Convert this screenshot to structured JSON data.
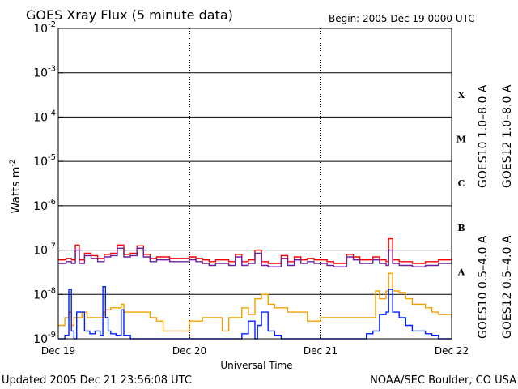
{
  "chart_data": {
    "type": "line",
    "title": "GOES Xray Flux (5 minute data)",
    "begin_label": "Begin:  2005 Dec 19 0000 UTC",
    "ylabel": "Watts m",
    "ylabel_sup": "-2",
    "xlabel": "Universal Time",
    "yscale": "log",
    "ylim": [
      1e-09,
      0.01
    ],
    "y_ticks": [
      {
        "base": "10",
        "exp": "-2",
        "value": 0.01
      },
      {
        "base": "10",
        "exp": "-3",
        "value": 0.001
      },
      {
        "base": "10",
        "exp": "-4",
        "value": 0.0001
      },
      {
        "base": "10",
        "exp": "-5",
        "value": 1e-05
      },
      {
        "base": "10",
        "exp": "-6",
        "value": 1e-06
      },
      {
        "base": "10",
        "exp": "-7",
        "value": 1e-07
      },
      {
        "base": "10",
        "exp": "-8",
        "value": 1e-08
      },
      {
        "base": "10",
        "exp": "-9",
        "value": 1e-09
      }
    ],
    "x_range_days": [
      0,
      3
    ],
    "x_ticks": [
      {
        "label": "Dec 19",
        "day": 0
      },
      {
        "label": "Dec 20",
        "day": 1
      },
      {
        "label": "Dec 21",
        "day": 2
      },
      {
        "label": "Dec 22",
        "day": 3
      }
    ],
    "flare_classes": [
      {
        "label": "X",
        "value": 0.00032
      },
      {
        "label": "M",
        "value": 3.2e-05
      },
      {
        "label": "C",
        "value": 3.2e-06
      },
      {
        "label": "B",
        "value": 3.2e-07
      },
      {
        "label": "A",
        "value": 3.2e-08
      }
    ],
    "grid": "horizontal lines at each decade",
    "series": [
      {
        "name": "GOES12 1.0-8.0 A",
        "color": "#ff0000",
        "x": [
          0,
          0.06,
          0.1,
          0.13,
          0.16,
          0.2,
          0.25,
          0.3,
          0.35,
          0.4,
          0.45,
          0.5,
          0.55,
          0.6,
          0.65,
          0.7,
          0.75,
          0.8,
          0.85,
          0.9,
          0.95,
          1.0,
          1.05,
          1.1,
          1.15,
          1.2,
          1.25,
          1.3,
          1.35,
          1.4,
          1.45,
          1.5,
          1.55,
          1.6,
          1.65,
          1.7,
          1.75,
          1.8,
          1.85,
          1.9,
          1.95,
          2.0,
          2.05,
          2.1,
          2.15,
          2.2,
          2.25,
          2.3,
          2.35,
          2.4,
          2.45,
          2.5,
          2.52,
          2.55,
          2.6,
          2.65,
          2.7,
          2.75,
          2.8,
          2.85,
          2.9,
          2.95,
          3.0
        ],
        "y": [
          6e-08,
          6.5e-08,
          6e-08,
          1.3e-07,
          6e-08,
          8.5e-08,
          7.5e-08,
          6.5e-08,
          8e-08,
          8.5e-08,
          1.3e-07,
          8e-08,
          8.5e-08,
          1.25e-07,
          8e-08,
          6.5e-08,
          7e-08,
          7e-08,
          6.5e-08,
          6.5e-08,
          6.5e-08,
          7e-08,
          6.5e-08,
          6e-08,
          5.5e-08,
          6e-08,
          6e-08,
          5.5e-08,
          8e-08,
          5.5e-08,
          6e-08,
          1e-07,
          5.5e-08,
          5e-08,
          5e-08,
          7.5e-08,
          5.5e-08,
          7e-08,
          6e-08,
          6.5e-08,
          6e-08,
          6e-08,
          5.5e-08,
          5e-08,
          5e-08,
          8e-08,
          7e-08,
          6e-08,
          6e-08,
          7e-08,
          6e-08,
          5.5e-08,
          1.8e-07,
          6e-08,
          5.5e-08,
          5.5e-08,
          5e-08,
          5e-08,
          5.5e-08,
          5.5e-08,
          6e-08,
          6e-08,
          6.5e-08
        ]
      },
      {
        "name": "GOES10 1.0-8.0 A",
        "color": "#6a1fa0",
        "x": [
          0,
          0.06,
          0.1,
          0.13,
          0.16,
          0.2,
          0.25,
          0.3,
          0.35,
          0.4,
          0.45,
          0.5,
          0.55,
          0.6,
          0.65,
          0.7,
          0.75,
          0.8,
          0.85,
          0.9,
          0.95,
          1.0,
          1.05,
          1.1,
          1.15,
          1.2,
          1.25,
          1.3,
          1.35,
          1.4,
          1.45,
          1.5,
          1.55,
          1.6,
          1.65,
          1.7,
          1.75,
          1.8,
          1.85,
          1.9,
          1.95,
          2.0,
          2.05,
          2.1,
          2.15,
          2.2,
          2.25,
          2.3,
          2.35,
          2.4,
          2.45,
          2.5,
          2.52,
          2.55,
          2.6,
          2.65,
          2.7,
          2.75,
          2.8,
          2.85,
          2.9,
          2.95,
          3.0
        ],
        "y": [
          5e-08,
          5.5e-08,
          5e-08,
          1e-07,
          5e-08,
          7.5e-08,
          6.5e-08,
          5.5e-08,
          7e-08,
          7.5e-08,
          1.1e-07,
          7e-08,
          7.5e-08,
          1.1e-07,
          7e-08,
          5.5e-08,
          6e-08,
          6e-08,
          5.5e-08,
          5.5e-08,
          5.5e-08,
          6e-08,
          5.5e-08,
          5e-08,
          4.5e-08,
          5e-08,
          5e-08,
          4.5e-08,
          7e-08,
          4.5e-08,
          5e-08,
          8.5e-08,
          4.5e-08,
          4.2e-08,
          4.2e-08,
          6.5e-08,
          4.5e-08,
          6e-08,
          5e-08,
          5.5e-08,
          5e-08,
          5e-08,
          4.5e-08,
          4.2e-08,
          4.2e-08,
          7e-08,
          6e-08,
          5e-08,
          5e-08,
          6e-08,
          5e-08,
          4.5e-08,
          1e-07,
          5e-08,
          4.5e-08,
          4.5e-08,
          4.2e-08,
          4.2e-08,
          4.5e-08,
          4.5e-08,
          5e-08,
          5e-08,
          5.5e-08
        ]
      },
      {
        "name": "GOES10 0.5-4.0 A",
        "color": "#f0a000",
        "x": [
          0,
          0.05,
          0.08,
          0.1,
          0.12,
          0.14,
          0.18,
          0.22,
          0.26,
          0.3,
          0.34,
          0.36,
          0.4,
          0.44,
          0.48,
          0.5,
          0.55,
          0.6,
          0.65,
          0.7,
          0.75,
          0.8,
          0.85,
          0.9,
          0.95,
          1.0,
          1.1,
          1.2,
          1.25,
          1.3,
          1.35,
          1.4,
          1.45,
          1.5,
          1.55,
          1.6,
          1.65,
          1.7,
          1.75,
          1.8,
          1.85,
          1.9,
          1.95,
          2.0,
          2.1,
          2.2,
          2.3,
          2.35,
          2.4,
          2.42,
          2.45,
          2.5,
          2.52,
          2.55,
          2.6,
          2.65,
          2.7,
          2.75,
          2.8,
          2.85,
          2.9,
          3.0
        ],
        "y": [
          2e-09,
          3e-09,
          4e-09,
          2e-09,
          3e-09,
          3e-09,
          4e-09,
          3e-09,
          3e-09,
          3e-09,
          4e-09,
          4.5e-09,
          5e-09,
          5e-09,
          6e-09,
          4e-09,
          4e-09,
          4e-09,
          4e-09,
          3e-09,
          2.5e-09,
          1.5e-09,
          1.5e-09,
          1.5e-09,
          1.5e-09,
          2.5e-09,
          3e-09,
          3e-09,
          1.5e-09,
          3e-09,
          3e-09,
          5e-09,
          3.5e-09,
          8e-09,
          1e-08,
          6e-09,
          5e-09,
          5e-09,
          4e-09,
          4e-09,
          4e-09,
          2.5e-09,
          2.5e-09,
          3e-09,
          3e-09,
          3e-09,
          3e-09,
          3e-09,
          3e-09,
          1.2e-08,
          8e-09,
          1.2e-08,
          3e-08,
          1.2e-08,
          1.1e-08,
          8e-09,
          6e-09,
          6e-09,
          5e-09,
          4e-09,
          3.5e-09,
          3e-09
        ]
      },
      {
        "name": "GOES12 0.5-4.0 A",
        "color": "#0020ff",
        "x": [
          0,
          0.05,
          0.08,
          0.1,
          0.12,
          0.14,
          0.16,
          0.2,
          0.24,
          0.28,
          0.32,
          0.34,
          0.36,
          0.38,
          0.4,
          0.44,
          0.48,
          0.5,
          0.55,
          0.6,
          0.65,
          0.7,
          0.75,
          0.8,
          0.85,
          0.9,
          0.95,
          1.0,
          1.1,
          1.2,
          1.3,
          1.4,
          1.45,
          1.5,
          1.52,
          1.55,
          1.6,
          1.65,
          1.7,
          1.75,
          1.8,
          1.85,
          1.9,
          1.95,
          2.0,
          2.1,
          2.2,
          2.3,
          2.35,
          2.4,
          2.45,
          2.5,
          2.52,
          2.55,
          2.6,
          2.65,
          2.7,
          2.75,
          2.8,
          2.85,
          2.9,
          3.0
        ],
        "y": [
          1e-09,
          1.2e-09,
          1.3e-08,
          1.5e-09,
          1e-09,
          4e-09,
          4e-09,
          1.5e-09,
          1.3e-09,
          1.5e-09,
          1.2e-09,
          1.5e-08,
          3e-09,
          1.5e-09,
          1.3e-09,
          1.2e-09,
          4.5e-09,
          1.2e-09,
          1e-09,
          1e-09,
          1e-09,
          1e-09,
          1e-09,
          1e-09,
          1e-09,
          1e-09,
          1e-09,
          1e-09,
          1e-09,
          1e-09,
          1e-09,
          1.3e-09,
          2.5e-09,
          1e-09,
          2e-09,
          4e-09,
          1.5e-09,
          1.2e-09,
          1e-09,
          1e-09,
          1e-09,
          1e-09,
          1e-09,
          1e-09,
          1e-09,
          1e-09,
          1e-09,
          1e-09,
          1.3e-09,
          1.5e-09,
          3.5e-09,
          4e-09,
          1.3e-08,
          4e-09,
          3e-09,
          2e-09,
          1.5e-09,
          1.5e-09,
          1.3e-09,
          1.2e-09,
          1e-09,
          1e-09
        ]
      }
    ]
  },
  "legend_right": [
    {
      "label": "GOES10 1.0–8.0 A",
      "color": "#6a1fa0"
    },
    {
      "label": "GOES12 1.0–8.0 A",
      "color": "#ff0000"
    },
    {
      "label": "GOES10 0.5–4.0 A",
      "color": "#f0a000"
    },
    {
      "label": "GOES12 0.5–4.0 A",
      "color": "#0020ff"
    }
  ],
  "footer": {
    "updated": "Updated 2005 Dec 21 23:56:08 UTC",
    "credit": "NOAA/SEC Boulder, CO USA"
  }
}
